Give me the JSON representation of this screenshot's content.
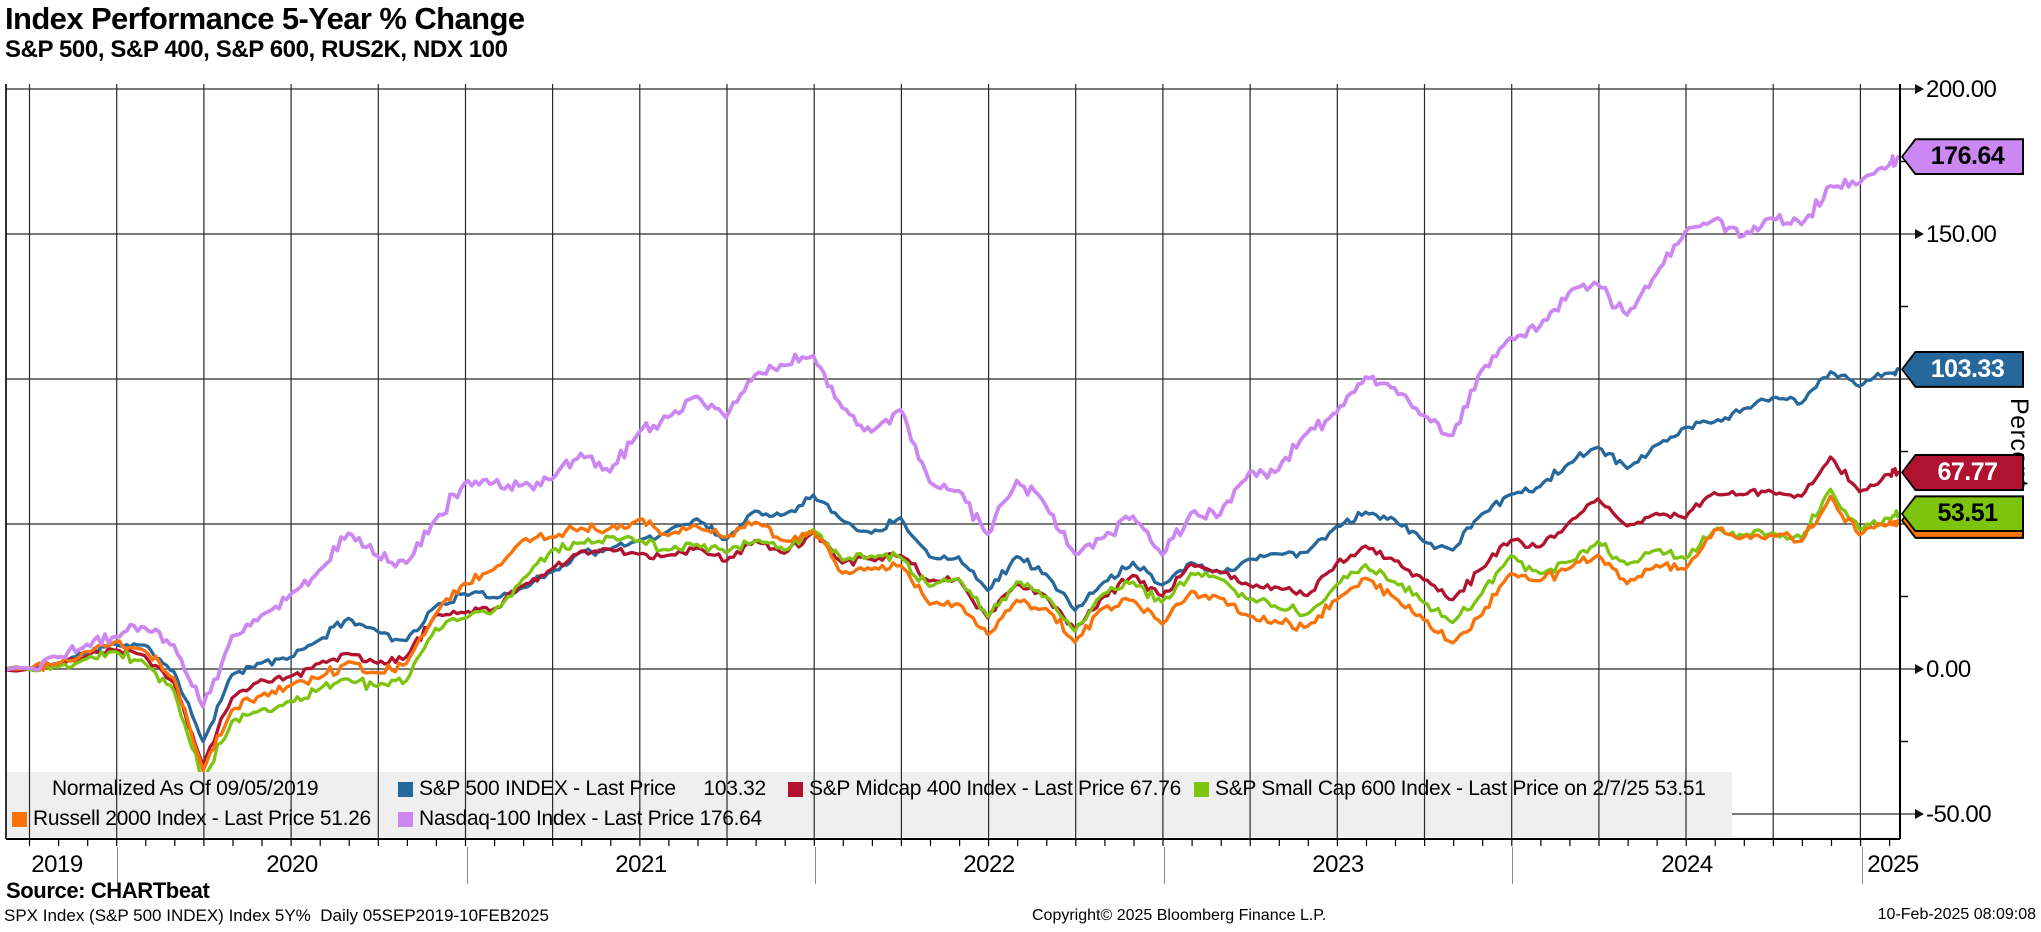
{
  "header": {
    "title": "Index Performance 5-Year % Change",
    "subtitle": "S&P 500, S&P 400, S&P 600, RUS2K, NDX 100"
  },
  "colors": {
    "spx": "#26689c",
    "mid": "#b1122f",
    "sml": "#7dc40e",
    "rut": "#f8730a",
    "ndx": "#cd87f2",
    "grid": "#2a2a2a",
    "axis": "#000000",
    "legend_bg": "#efefef",
    "year_divider": "#8a8a8a"
  },
  "chart_data": {
    "type": "line",
    "title": "Index Performance 5-Year % Change",
    "normalized_note": "Normalized As Of 09/05/2019",
    "ylabel": "Percent",
    "ylim": [
      -50,
      200
    ],
    "y_ticks": [
      "200.00",
      "150.00",
      "100.00",
      "50.00",
      "0.00",
      "-50.00"
    ],
    "y_tick_values": [
      200,
      150,
      100,
      50,
      0,
      -50
    ],
    "y_minor_tick_values": [
      175,
      125,
      75,
      25,
      -25
    ],
    "x_years": [
      "2019",
      "2020",
      "2021",
      "2022",
      "2023",
      "2024",
      "2025"
    ],
    "x_range": "05SEP2019-10FEB2025",
    "x_note": "values are monthly points from Sep 2019 (0 = 09/05/2019 baseline); final point 10-Feb-2025",
    "grid": "quarterly vertical, 50-unit horizontal",
    "legend_position": "bottom band",
    "series": [
      {
        "id": "spx",
        "name": "S&P 500 INDEX",
        "legend": "S&P 500 INDEX - Last Price     103.32",
        "tag": "103.33",
        "values": [
          0,
          2,
          5.5,
          8.5,
          8.2,
          -0.9,
          -25,
          -2,
          2,
          4,
          10,
          17.5,
          13,
          9.8,
          21.6,
          26,
          24.7,
          28,
          33.4,
          40.3,
          41.2,
          44.3,
          47.5,
          51.8,
          44.6,
          54.5,
          53.3,
          60,
          51.2,
          46.8,
          52.2,
          38.7,
          38.7,
          27.1,
          38.8,
          32.8,
          20.3,
          30,
          36.8,
          29,
          36.7,
          33.1,
          37.9,
          39.7,
          40.3,
          49.2,
          54.1,
          51.5,
          44,
          41,
          53.4,
          60.2,
          62.9,
          70.9,
          76.4,
          69.2,
          77.2,
          83.3,
          85.2,
          89.7,
          93.5,
          91.7,
          102.5,
          97.5,
          102,
          103.32
        ]
      },
      {
        "id": "mid",
        "name": "S&P Midcap 400 Index",
        "legend": "S&P Midcap 400 Index - Last Price 67.76",
        "tag": "67.77",
        "values": [
          0,
          1,
          4.3,
          6.5,
          4.6,
          -4.8,
          -33,
          -10,
          -3.7,
          -2.6,
          1.9,
          5.3,
          2,
          4.2,
          18.6,
          19.4,
          20.7,
          28.7,
          34.4,
          40.6,
          41.3,
          39.6,
          39.2,
          41.8,
          37.2,
          44.3,
          39.9,
          47.2,
          36.5,
          37.8,
          39.2,
          30.3,
          31.1,
          17.6,
          29.3,
          25.2,
          13.8,
          25,
          32.3,
          25.2,
          36.2,
          33.5,
          28.9,
          28.1,
          25.3,
          36.4,
          42.4,
          37.3,
          30.8,
          23.9,
          34.6,
          44.3,
          42.1,
          50.5,
          58.7,
          49.3,
          53.7,
          52,
          60.8,
          60.1,
          61,
          59.6,
          73.1,
          61.1,
          67.1,
          67.77
        ]
      },
      {
        "id": "sml",
        "name": "S&P Small Cap 600 Index",
        "legend": "S&P Small Cap 600 Index - Last Price on 2/7/25 53.51",
        "tag": "53.51",
        "values": [
          0,
          0.5,
          3.5,
          6,
          2,
          -7.5,
          -38,
          -18,
          -14,
          -11,
          -7,
          -3.5,
          -6,
          -4,
          14,
          17.5,
          20,
          31,
          41,
          43.5,
          45.5,
          44.5,
          41,
          43,
          40,
          44,
          41,
          48,
          37.5,
          39,
          38.5,
          28.5,
          31,
          18,
          30,
          25,
          13,
          26,
          30,
          23,
          33,
          31,
          24,
          21,
          19,
          29,
          36,
          30,
          23,
          16,
          26,
          39,
          33,
          37,
          44,
          36,
          41,
          38,
          48,
          46,
          47,
          45,
          62,
          48,
          52,
          53.51
        ]
      },
      {
        "id": "rut",
        "name": "Russell 2000 Index",
        "legend": "Russell 2000 Index - Last Price 51.26",
        "tag": "51.26",
        "values": [
          0,
          2,
          6,
          9.4,
          6.2,
          -3.2,
          -35,
          -14.1,
          -9.1,
          -5.8,
          -3.2,
          2.5,
          -1.3,
          1.9,
          18.8,
          29.5,
          34.3,
          44.4,
          45.6,
          48.6,
          48.5,
          51.5,
          46,
          49.2,
          45.5,
          50.6,
          44.2,
          47.2,
          33.1,
          34.3,
          35.7,
          22.3,
          22.4,
          11.9,
          23.7,
          20.9,
          9.2,
          21.1,
          23.7,
          15.5,
          26.7,
          24.4,
          18.2,
          16,
          14.7,
          23.8,
          31.3,
          24.6,
          17,
          9,
          18.6,
          32.9,
          30.4,
          34.7,
          39.3,
          29.4,
          35.8,
          34.4,
          47.8,
          45.4,
          46.2,
          44.1,
          59.6,
          46.2,
          50,
          51.26
        ]
      },
      {
        "id": "ndx",
        "name": "Nasdaq-100 Index",
        "legend": "Nasdaq-100 Index - Last Price 176.64",
        "tag": "176.64",
        "values": [
          0,
          4,
          8.5,
          11.2,
          14.3,
          8.3,
          -13,
          11.4,
          18.4,
          25.6,
          34,
          46.8,
          39,
          36.5,
          51.5,
          64.1,
          64.2,
          63.5,
          65.3,
          74.3,
          68,
          81.6,
          86.8,
          94,
          86.7,
          101.4,
          104.7,
          108,
          90,
          81.8,
          89.4,
          64.5,
          61.5,
          46.5,
          65,
          56.3,
          39.7,
          45.3,
          52.7,
          39.3,
          53.9,
          53.3,
          67.9,
          68.6,
          81.5,
          88.3,
          100.7,
          96.9,
          87.4,
          80.6,
          103.1,
          114.3,
          118.2,
          129.8,
          132.5,
          122.1,
          136.1,
          150.7,
          155,
          149.3,
          155.5,
          153.3,
          166.6,
          167.6,
          173.6,
          176.64
        ]
      }
    ]
  },
  "footer": {
    "source": "Source: CHARTbeat",
    "meta": "SPX Index (S&P 500 INDEX) Index 5Y%  Daily 05SEP2019-10FEB2025",
    "copyright": "Copyright© 2025 Bloomberg Finance L.P.",
    "timestamp": "10-Feb-2025 08:09:08"
  }
}
